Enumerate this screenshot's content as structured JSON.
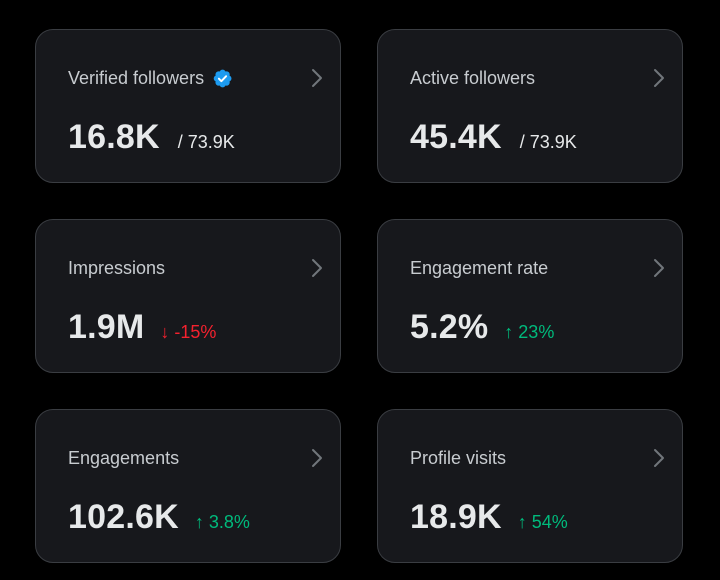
{
  "cards": [
    {
      "title": "Verified followers",
      "verified": true,
      "value": "16.8K",
      "sub": "/ 73.9K"
    },
    {
      "title": "Active followers",
      "value": "45.4K",
      "sub": "/ 73.9K"
    },
    {
      "title": "Impressions",
      "value": "1.9M",
      "delta": {
        "direction": "down",
        "arrow": "↓",
        "text": "-15%",
        "color": "#f4212e"
      }
    },
    {
      "title": "Engagement rate",
      "value": "5.2%",
      "delta": {
        "direction": "up",
        "arrow": "↑",
        "text": "23%",
        "color": "#00ba7c"
      }
    },
    {
      "title": "Engagements",
      "value": "102.6K",
      "delta": {
        "direction": "up",
        "arrow": "↑",
        "text": "3.8%",
        "color": "#00ba7c"
      }
    },
    {
      "title": "Profile visits",
      "value": "18.9K",
      "delta": {
        "direction": "up",
        "arrow": "↑",
        "text": "54%",
        "color": "#00ba7c"
      }
    }
  ],
  "icons": {
    "verified": "verified-badge-icon",
    "chevron": "chevron-right-icon"
  },
  "colors": {
    "background": "#000000",
    "card": "#17181c",
    "border": "#3a3d42",
    "verified_blue": "#1d9bf0",
    "up": "#00ba7c",
    "down": "#f4212e"
  }
}
